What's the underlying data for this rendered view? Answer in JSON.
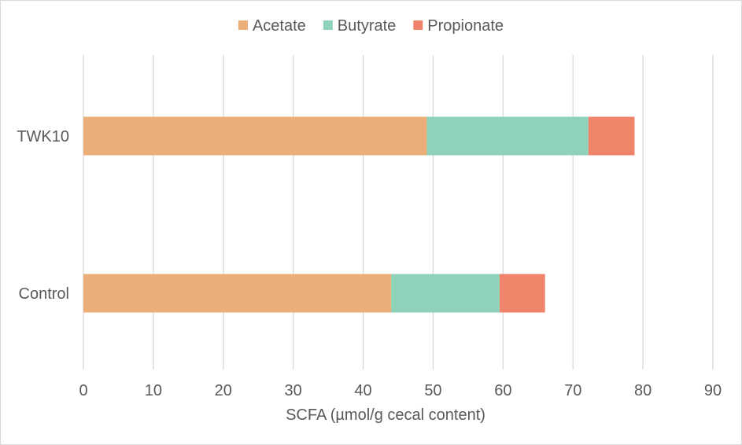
{
  "chart_data": {
    "type": "bar",
    "orientation": "horizontal",
    "stacked": true,
    "title": "",
    "xlabel": "SCFA (µmol/g cecal content)",
    "ylabel": "",
    "xlim": [
      0,
      90
    ],
    "xticks": [
      0,
      10,
      20,
      30,
      40,
      50,
      60,
      70,
      80,
      90
    ],
    "grid": true,
    "legend_position": "top",
    "categories": [
      "TWK10",
      "Control"
    ],
    "series": [
      {
        "name": "Acetate",
        "color": "#EBAE78",
        "values": [
          49.1,
          44.0
        ]
      },
      {
        "name": "Butyrate",
        "color": "#8ED2B9",
        "values": [
          23.1,
          15.5
        ]
      },
      {
        "name": "Propionate",
        "color": "#EF846B",
        "values": [
          6.6,
          6.5
        ]
      }
    ]
  }
}
